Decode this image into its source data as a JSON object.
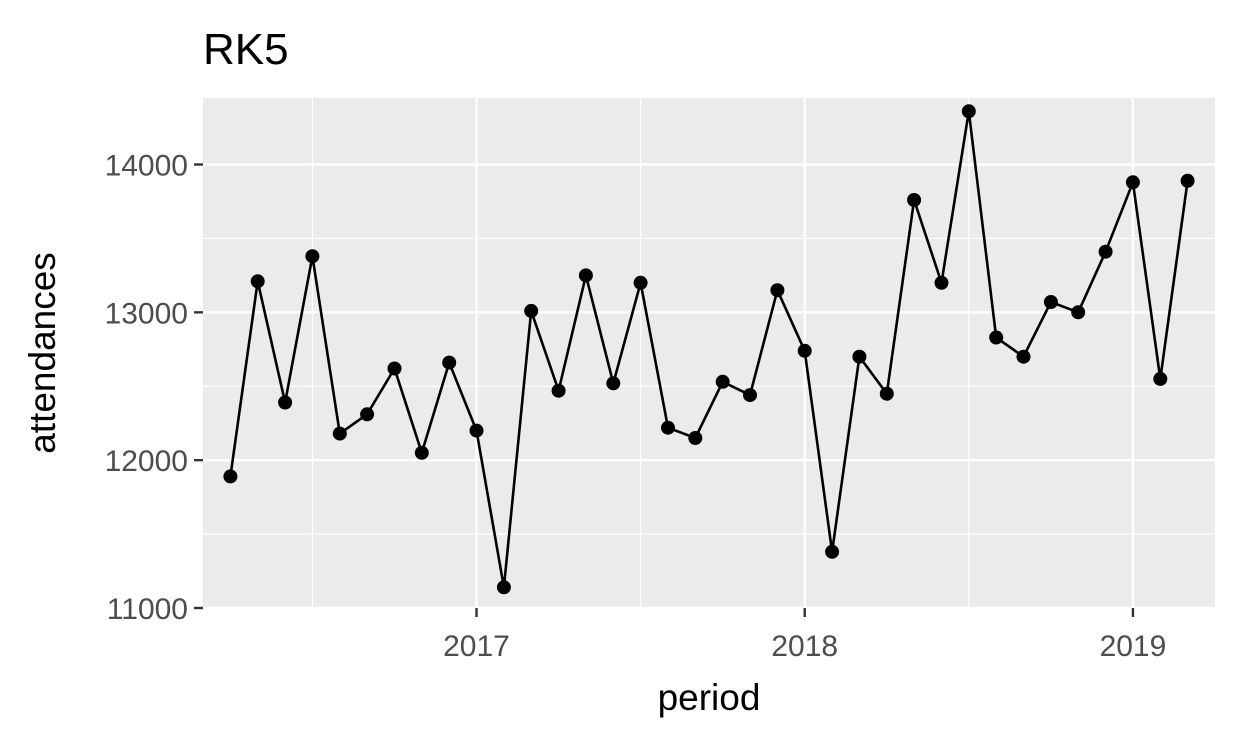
{
  "chart_data": {
    "type": "line",
    "title": "RK5",
    "xlabel": "period",
    "ylabel": "attendances",
    "x_ticks": [
      "2017",
      "2018",
      "2019"
    ],
    "y_ticks": [
      11000,
      12000,
      13000,
      14000
    ],
    "xlim": [
      "2016-03-01",
      "2019-04-01"
    ],
    "ylim": [
      11000,
      14450
    ],
    "grid": true,
    "legend": "none",
    "colors": {
      "panel_background": "#ebebeb",
      "grid": "#ffffff",
      "series": "#000000",
      "tick_label": "#4d4d4d",
      "axis_tick": "#333333"
    },
    "series": [
      {
        "x": [
          "2016-04",
          "2016-05",
          "2016-06",
          "2016-07",
          "2016-08",
          "2016-09",
          "2016-10",
          "2016-11",
          "2016-12",
          "2017-01",
          "2017-02",
          "2017-03",
          "2017-04",
          "2017-05",
          "2017-06",
          "2017-07",
          "2017-08",
          "2017-09",
          "2017-10",
          "2017-11",
          "2017-12",
          "2018-01",
          "2018-02",
          "2018-03",
          "2018-04",
          "2018-05",
          "2018-06",
          "2018-07",
          "2018-08",
          "2018-09",
          "2018-10",
          "2018-11",
          "2018-12",
          "2019-01",
          "2019-02",
          "2019-03"
        ],
        "values": [
          11890,
          13210,
          12390,
          13380,
          12180,
          12310,
          12620,
          12050,
          12660,
          12200,
          11140,
          13010,
          12470,
          13250,
          12520,
          13200,
          12220,
          12150,
          12530,
          12440,
          13150,
          12740,
          11380,
          12700,
          12450,
          13760,
          13200,
          14360,
          12830,
          12700,
          13070,
          13000,
          13410,
          13880,
          12550,
          13890
        ]
      }
    ]
  }
}
